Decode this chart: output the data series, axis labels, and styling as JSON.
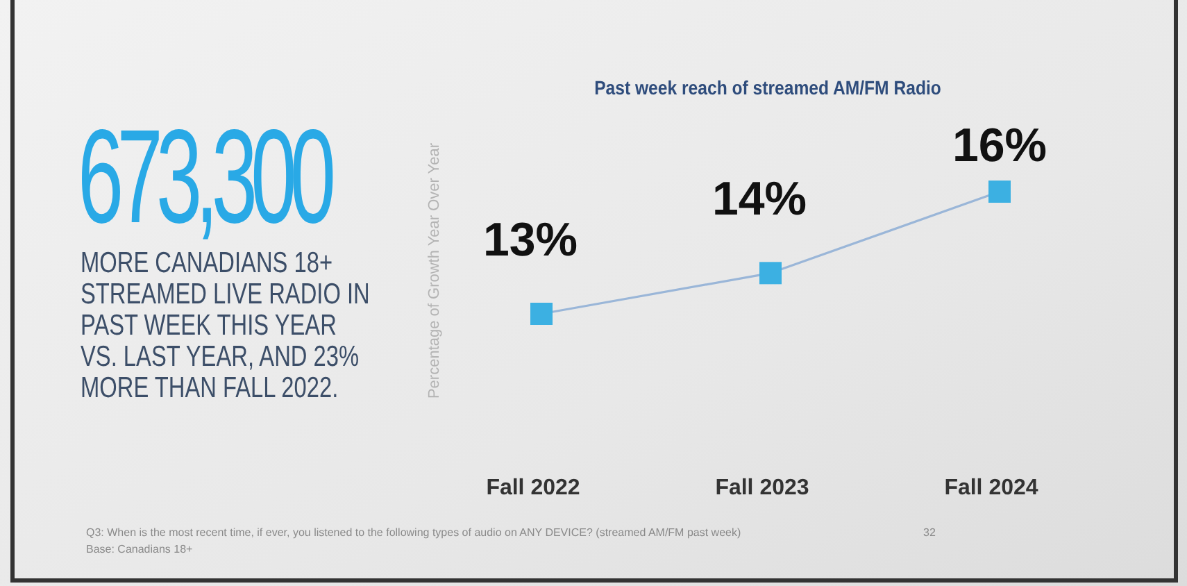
{
  "chart_data": [
    {
      "type": "other",
      "title": "673,300",
      "annotations": [
        "MORE CANADIANS 18+ STREAMED LIVE RADIO IN PAST WEEK THIS YEAR VS. LAST YEAR, AND 23% MORE THAN FALL 2022."
      ]
    },
    {
      "type": "line",
      "title": "Past week reach of streamed AM/FM  Radio",
      "ylabel": "Percentage of Growth Year Over Year",
      "categories": [
        "Fall 2022",
        "Fall 2023",
        "Fall 2024"
      ],
      "series": [
        {
          "color": "#3cb0e2",
          "values": [
            13,
            14,
            16
          ],
          "value_labels": [
            "13%",
            "14%",
            "16%"
          ]
        }
      ],
      "marker": "square",
      "annotations": [
        "Q3: When is the most recent time, if ever, you listened to the following types of audio on ANY DEVICE? (streamed AM/FM past week)",
        "Base: Canadians 18+",
        "32"
      ]
    }
  ]
}
